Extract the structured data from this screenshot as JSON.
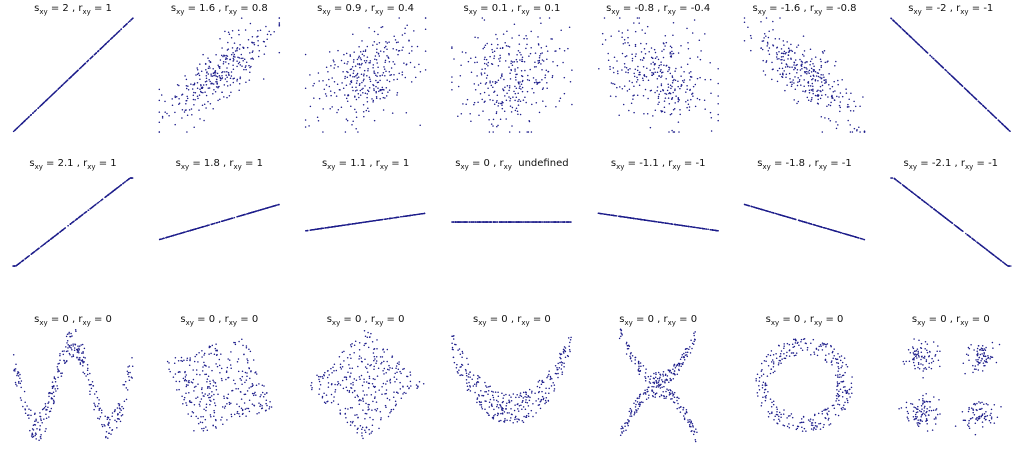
{
  "symbols": {
    "s": "s",
    "r": "r",
    "sub": "xy",
    "eq": "=",
    "sep": ","
  },
  "rows": [
    [
      {
        "s": 2,
        "r": 1
      },
      {
        "s": 1.6,
        "r": 0.8
      },
      {
        "s": 0.9,
        "r": 0.4
      },
      {
        "s": 0.1,
        "r": 0.1
      },
      {
        "s": -0.8,
        "r": -0.4
      },
      {
        "s": -1.6,
        "r": -0.8
      },
      {
        "s": -2,
        "r": -1
      }
    ],
    [
      {
        "s": 2.1,
        "r": 1
      },
      {
        "s": 1.8,
        "r": 1
      },
      {
        "s": 1.1,
        "r": 1
      },
      {
        "s": 0,
        "r": "undefined"
      },
      {
        "s": -1.1,
        "r": -1
      },
      {
        "s": -1.8,
        "r": -1
      },
      {
        "s": -2.1,
        "r": -1
      }
    ],
    [
      {
        "s": 0,
        "r": 0
      },
      {
        "s": 0,
        "r": 0
      },
      {
        "s": 0,
        "r": 0
      },
      {
        "s": 0,
        "r": 0
      },
      {
        "s": 0,
        "r": 0
      },
      {
        "s": 0,
        "r": 0
      },
      {
        "s": 0,
        "r": 0
      }
    ]
  ]
}
